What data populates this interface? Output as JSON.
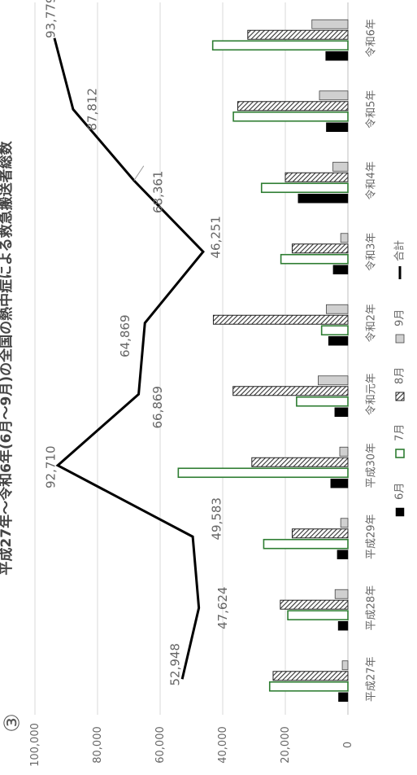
{
  "corner_mark": "③",
  "chart_data": {
    "type": "bar",
    "orientation": "rotated-90-ccw",
    "title": "平成27年～令和6年(6月～9月)の全国の熱中症による救急搬送者総数",
    "categories": [
      "平成27年",
      "平成28年",
      "平成29年",
      "平成30年",
      "令和元年",
      "令和2年",
      "令和3年",
      "令和4年",
      "令和5年",
      "令和6年"
    ],
    "series": [
      {
        "name": "6月",
        "kind": "bar",
        "style": "solid-black",
        "values": [
          3000,
          3100,
          3400,
          5500,
          4200,
          6200,
          4700,
          15900,
          6900,
          7100
        ]
      },
      {
        "name": "7月",
        "kind": "bar",
        "style": "outline-green",
        "values": [
          25000,
          19200,
          26900,
          54200,
          16400,
          8400,
          21400,
          27600,
          36600,
          43200
        ]
      },
      {
        "name": "8月",
        "kind": "bar",
        "style": "hatched",
        "values": [
          23900,
          21600,
          17800,
          30700,
          36700,
          43000,
          17800,
          20000,
          35200,
          32000
        ]
      },
      {
        "name": "9月",
        "kind": "bar",
        "style": "light-gray",
        "values": [
          1800,
          4100,
          2300,
          2600,
          9500,
          6900,
          2300,
          4800,
          9100,
          11500
        ]
      },
      {
        "name": "合計",
        "kind": "line",
        "style": "black-line",
        "values": [
          52948,
          47624,
          49583,
          92710,
          66869,
          64869,
          46251,
          68361,
          87812,
          93779
        ]
      }
    ],
    "data_labels": [
      "52,948",
      "47,624",
      "49,583",
      "92,710",
      "66,869",
      "64,869",
      "46,251",
      "68,361",
      "87,812",
      "93,779"
    ],
    "yticks": [
      "0",
      "20,000",
      "40,000",
      "60,000",
      "80,000",
      "100,000"
    ],
    "ylim": [
      0,
      100000
    ],
    "grid": true,
    "legend_position": "bottom",
    "colors": {
      "solid": "#000000",
      "outline": "#2e7d32",
      "hatch": "#444444",
      "light": "#d0d0d0",
      "line": "#000000",
      "grid": "#d9d9d9",
      "text": "#666666"
    }
  }
}
